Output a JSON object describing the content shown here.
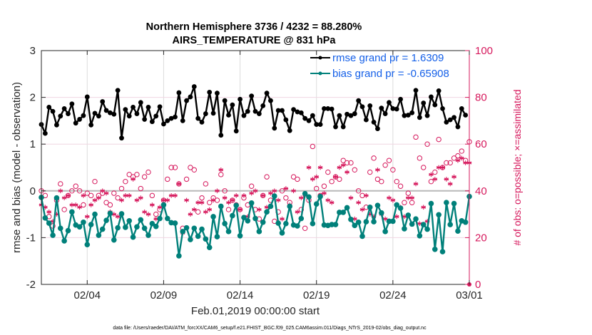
{
  "chart_data": {
    "type": "line",
    "title": "Northern Hemisphere 3736 / 4232 = 88.280%",
    "subtitle": "AIRS_TEMPERATURE @ 831 hPa",
    "xlabel": "Feb.01,2019 00:00:00 start",
    "ylabel": "rmse and bias (model - observation)",
    "ylabel_right": "# of obs: o=possible; ×=assimilated",
    "footer": "data file: /Users/raeder/DAI/ATM_forcXX/CAM6_setup/f.e21.FHIST_BGC.f09_025.CAM6assim.011/Diags_NTrS_2019-02/obs_diag_output.nc",
    "x_unit": "days since Feb.01,2019 00:00",
    "x_range": [
      0,
      28
    ],
    "x_step_days": 0.25,
    "xticks": [
      {
        "value": 3,
        "label": "02/04"
      },
      {
        "value": 8,
        "label": "02/09"
      },
      {
        "value": 13,
        "label": "02/14"
      },
      {
        "value": 18,
        "label": "02/19"
      },
      {
        "value": 23,
        "label": "02/24"
      },
      {
        "value": 28,
        "label": "03/01"
      }
    ],
    "ylim": [
      -2,
      3
    ],
    "yticks": [
      "-2",
      "-1",
      "0",
      "1",
      "2",
      "3"
    ],
    "ylim_right": [
      0,
      100
    ],
    "yticks_right": [
      "0",
      "20",
      "40",
      "60",
      "80",
      "100"
    ],
    "grid": true,
    "legend_position": "top-right",
    "colors": {
      "rmse": "#000000",
      "bias": "#00807a",
      "obs": "#d6185c",
      "zero_line": "#b8b8b8",
      "legend_text": "#1560e8"
    },
    "series": [
      {
        "name": "rmse grand pr = 1.6309",
        "axis": "left",
        "style": "line-star",
        "values": [
          1.42,
          1.23,
          1.79,
          1.7,
          1.41,
          1.6,
          1.76,
          1.65,
          1.86,
          1.45,
          1.53,
          1.61,
          2.01,
          1.41,
          1.66,
          1.6,
          1.91,
          1.72,
          1.67,
          1.64,
          2.15,
          1.13,
          1.74,
          1.6,
          1.79,
          1.65,
          1.89,
          1.53,
          1.79,
          1.48,
          1.6,
          1.8,
          1.43,
          1.5,
          1.55,
          1.58,
          2.1,
          1.5,
          1.93,
          2.01,
          2.23,
          1.55,
          1.47,
          1.65,
          2.11,
          1.66,
          2.09,
          1.19,
          1.93,
          1.62,
          1.84,
          1.28,
          1.96,
          1.61,
          1.7,
          2.03,
          1.7,
          1.65,
          1.82,
          2.09,
          1.93,
          1.34,
          1.72,
          1.72,
          1.52,
          1.29,
          1.74,
          1.69,
          1.67,
          1.55,
          1.5,
          1.61,
          1.42,
          1.42,
          1.76,
          1.76,
          1.75,
          1.37,
          1.61,
          1.37,
          1.64,
          1.61,
          1.65,
          1.93,
          1.8,
          1.52,
          1.82,
          1.47,
          1.33,
          1.77,
          1.65,
          1.89,
          1.76,
          1.75,
          1.96,
          1.61,
          1.62,
          1.67,
          2.15,
          1.57,
          1.88,
          1.61,
          2.01,
          1.84,
          2.14,
          1.76,
          1.47,
          1.52,
          1.57,
          1.37,
          1.76,
          1.62
        ]
      },
      {
        "name": "bias grand pr = -0.65908",
        "axis": "left",
        "style": "line-dot",
        "values": [
          -0.14,
          -0.58,
          -0.69,
          -0.95,
          -0.15,
          -0.8,
          -1.07,
          -0.85,
          -0.45,
          -0.73,
          -0.77,
          -0.67,
          -1.15,
          -0.72,
          -0.5,
          -0.95,
          -0.82,
          -0.63,
          -0.48,
          -1.05,
          -0.79,
          -0.49,
          -0.78,
          -0.64,
          -0.99,
          -0.77,
          -0.62,
          -0.8,
          -0.95,
          -0.7,
          -0.76,
          -0.59,
          -0.3,
          -0.59,
          -0.68,
          -0.69,
          -1.39,
          -0.87,
          -0.79,
          -1.04,
          -0.8,
          -0.97,
          -0.82,
          -1.03,
          -1.21,
          -0.55,
          -0.98,
          -0.33,
          -0.7,
          -0.87,
          -0.53,
          -0.31,
          -0.96,
          -0.57,
          -0.64,
          -0.26,
          -0.59,
          -0.87,
          -0.67,
          -0.45,
          -0.33,
          -0.11,
          -0.69,
          -0.9,
          -0.7,
          -0.33,
          -0.73,
          -0.75,
          -0.59,
          -0.06,
          -0.13,
          -0.7,
          -0.28,
          -0.12,
          -0.73,
          -0.74,
          -0.72,
          -0.72,
          -0.46,
          -0.46,
          -0.36,
          -0.61,
          -0.74,
          -0.67,
          -0.97,
          -0.66,
          -0.35,
          -0.66,
          -0.31,
          -0.47,
          -0.87,
          -0.65,
          -0.65,
          -0.3,
          -0.37,
          -0.81,
          -0.52,
          -0.71,
          -0.6,
          -0.96,
          -0.72,
          -0.82,
          -0.27,
          -1.25,
          -0.51,
          -1.3,
          -0.25,
          -0.72,
          -0.27,
          -0.86,
          -0.64,
          -0.67,
          -0.12
        ]
      },
      {
        "name": "possible",
        "axis": "right",
        "style": "open-circle",
        "values": [
          40,
          38,
          29,
          25,
          36,
          43,
          32,
          38,
          40,
          42,
          40,
          34,
          39,
          38,
          44,
          38,
          39,
          35,
          34,
          39,
          37,
          41,
          44,
          47,
          46,
          47,
          41,
          46,
          48,
          38,
          30,
          32,
          36,
          45,
          50,
          50,
          43,
          24,
          45,
          50,
          49,
          31,
          37,
          43,
          35,
          37,
          36,
          47,
          40,
          32,
          36,
          34,
          32,
          37,
          34,
          42,
          32,
          28,
          38,
          46,
          36,
          27,
          31,
          40,
          37,
          35,
          46,
          45,
          32,
          24,
          36,
          59,
          41,
          38,
          42,
          48,
          44,
          46,
          45,
          53,
          52,
          52,
          49,
          40,
          38,
          33,
          48,
          54,
          45,
          44,
          51,
          53,
          49,
          44,
          42,
          35,
          39,
          35,
          63,
          54,
          50,
          60,
          44,
          48,
          62,
          50,
          52,
          52,
          54,
          55,
          57,
          53,
          61
        ]
      },
      {
        "name": "assimilated",
        "axis": "right",
        "style": "star",
        "values": [
          34,
          33,
          31,
          27,
          30,
          40,
          37,
          38,
          34,
          34,
          33,
          38,
          29,
          34,
          36,
          37,
          40,
          39,
          31,
          30,
          29,
          36,
          38,
          38,
          45,
          36,
          37,
          31,
          30,
          34,
          28,
          33,
          36,
          36,
          38,
          38,
          43,
          22,
          36,
          30,
          32,
          35,
          35,
          31,
          32,
          36,
          40,
          49,
          37,
          35,
          36,
          38,
          32,
          38,
          29,
          39,
          40,
          32,
          38,
          33,
          39,
          40,
          36,
          28,
          41,
          34,
          40,
          31,
          37,
          38,
          50,
          45,
          46,
          50,
          39,
          36,
          35,
          46,
          50,
          51,
          48,
          37,
          28,
          35,
          32,
          38,
          30,
          29,
          49,
          30,
          28,
          37,
          36,
          29,
          33,
          29,
          37,
          37,
          43,
          26,
          33,
          27,
          47,
          45,
          50,
          50,
          45,
          43,
          46,
          53,
          54,
          52,
          52
        ]
      }
    ]
  }
}
